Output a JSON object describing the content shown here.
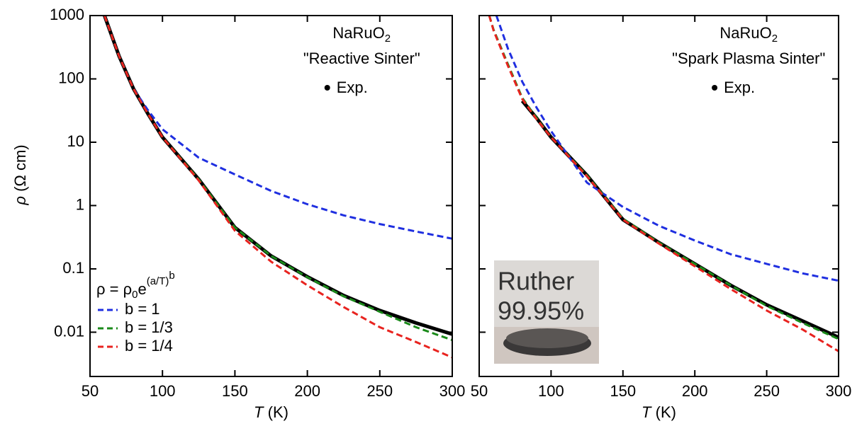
{
  "chart_data": [
    {
      "type": "line",
      "ylog": true,
      "annotation": {
        "compound": "NaRuO",
        "compound_subscript": "2",
        "method": "\"Reactive Sinter\""
      },
      "xlabel": {
        "symbol": "T",
        "unit": "(K)"
      },
      "ylabel": {
        "symbol": "ρ",
        "unit": "(Ω cm)"
      },
      "legend_title": {
        "lhs": "ρ = ρ",
        "sub": "0",
        "base": "e",
        "sup": "(a/T)",
        "sup2": "b"
      },
      "xlim": [
        50,
        300
      ],
      "xticks": [
        50,
        100,
        150,
        200,
        250,
        300
      ],
      "ylim": [
        0.002,
        1000
      ],
      "yticks": [
        0.01,
        0.1,
        1,
        10,
        100,
        1000
      ],
      "ytick_labels": true,
      "series": [
        {
          "name": "Exp.",
          "style": "solid",
          "color": "#000000",
          "x": [
            60,
            70,
            80,
            90,
            100,
            125,
            150,
            175,
            200,
            225,
            250,
            275,
            300
          ],
          "values": [
            1000,
            230,
            70,
            28,
            12,
            2.6,
            0.45,
            0.16,
            0.075,
            0.038,
            0.022,
            0.014,
            0.0093
          ]
        },
        {
          "name": "b = 1",
          "style": "dashed",
          "color": "#1f2fe0",
          "x": [
            60,
            70,
            80,
            90,
            100,
            125,
            150,
            175,
            200,
            225,
            250,
            275,
            300
          ],
          "values": [
            1000,
            230,
            70,
            32,
            16,
            5.7,
            3.1,
            1.7,
            1.05,
            0.7,
            0.51,
            0.39,
            0.3
          ]
        },
        {
          "name": "b = 1/3",
          "style": "dashed",
          "color": "#1a8a1a",
          "x": [
            60,
            70,
            80,
            90,
            100,
            125,
            150,
            175,
            200,
            225,
            250,
            275,
            300
          ],
          "values": [
            1000,
            230,
            70,
            28,
            12,
            2.6,
            0.45,
            0.16,
            0.074,
            0.037,
            0.021,
            0.012,
            0.0075
          ]
        },
        {
          "name": "b = 1/4",
          "style": "dashed",
          "color": "#e8231f",
          "x": [
            60,
            70,
            80,
            90,
            100,
            125,
            150,
            175,
            200,
            225,
            250,
            275,
            300
          ],
          "values": [
            1000,
            230,
            70,
            28,
            12,
            2.5,
            0.4,
            0.13,
            0.055,
            0.025,
            0.012,
            0.007,
            0.004
          ]
        }
      ]
    },
    {
      "type": "line",
      "ylog": true,
      "annotation": {
        "compound": "NaRuO",
        "compound_subscript": "2",
        "method": "\"Spark Plasma Sinter\""
      },
      "xlabel": {
        "symbol": "T",
        "unit": "(K)"
      },
      "inset_text": [
        "Ruther",
        "99.95%"
      ],
      "xlim": [
        50,
        300
      ],
      "xticks": [
        50,
        100,
        150,
        200,
        250,
        300
      ],
      "ylim": [
        0.002,
        1000
      ],
      "yticks": [
        0.01,
        0.1,
        1,
        10,
        100,
        1000
      ],
      "ytick_labels": false,
      "series": [
        {
          "name": "Exp.",
          "style": "solid",
          "color": "#000000",
          "x": [
            80,
            90,
            100,
            125,
            150,
            175,
            200,
            225,
            250,
            275,
            300
          ],
          "values": [
            45,
            24,
            12,
            3,
            0.6,
            0.26,
            0.12,
            0.055,
            0.027,
            0.015,
            0.0083
          ]
        },
        {
          "style": "dashed",
          "color": "#1f2fe0",
          "x": [
            62,
            70,
            80,
            90,
            100,
            125,
            150,
            175,
            200,
            225,
            250,
            275,
            300
          ],
          "values": [
            1000,
            300,
            90,
            35,
            15,
            2.3,
            0.95,
            0.48,
            0.28,
            0.17,
            0.12,
            0.085,
            0.065
          ]
        },
        {
          "style": "dashed",
          "color": "#1a8a1a",
          "x": [
            57,
            60,
            70,
            80,
            90,
            100,
            125,
            150,
            175,
            200,
            225,
            250,
            275,
            300
          ],
          "values": [
            1000,
            600,
            170,
            50,
            24,
            12,
            3,
            0.62,
            0.26,
            0.12,
            0.055,
            0.026,
            0.014,
            0.0078
          ]
        },
        {
          "style": "dashed",
          "color": "#e8231f",
          "x": [
            57,
            60,
            70,
            80,
            90,
            100,
            125,
            150,
            175,
            200,
            225,
            250,
            275,
            300
          ],
          "values": [
            1000,
            580,
            160,
            48,
            23,
            12,
            2.9,
            0.6,
            0.25,
            0.11,
            0.048,
            0.022,
            0.011,
            0.005
          ]
        }
      ]
    }
  ]
}
